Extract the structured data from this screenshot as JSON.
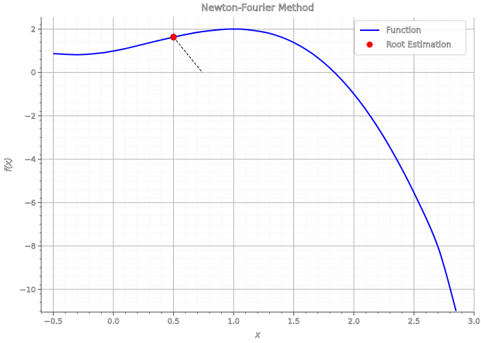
{
  "chart_data": {
    "type": "line",
    "title": "Newton-Fourier Method",
    "xlabel": "x",
    "ylabel": "f(x)",
    "xlim": [
      -0.6,
      3.0
    ],
    "ylim": [
      -11.05,
      2.55
    ],
    "xticks": [
      -0.5,
      0.0,
      0.5,
      1.0,
      1.5,
      2.0,
      2.5,
      3.0
    ],
    "xtick_labels": [
      "−0.5",
      "0.0",
      "0.5",
      "1.0",
      "1.5",
      "2.0",
      "2.5",
      "3.0"
    ],
    "yticks": [
      2,
      0,
      -2,
      -4,
      -6,
      -8,
      -10
    ],
    "ytick_labels": [
      "2",
      "0",
      "−2",
      "−4",
      "−6",
      "−8",
      "−10"
    ],
    "grid": true,
    "minor_grid": true,
    "legend_position": "top-right",
    "series": [
      {
        "name": "Function",
        "kind": "line",
        "color": "#0000ff",
        "x": [
          -0.5,
          -0.3,
          -0.1,
          0.1,
          0.3,
          0.5,
          0.7,
          0.9,
          1.0,
          1.1,
          1.3,
          1.5,
          1.7,
          1.9,
          2.1,
          2.3,
          2.5,
          2.7,
          2.85
        ],
        "y": [
          0.87,
          0.82,
          0.9,
          1.1,
          1.37,
          1.63,
          1.85,
          1.98,
          2.0,
          1.98,
          1.8,
          1.38,
          0.68,
          -0.35,
          -1.72,
          -3.45,
          -5.55,
          -8.05,
          -11.0
        ]
      },
      {
        "name": "Root Estimation",
        "kind": "scatter",
        "color": "#ff0000",
        "x": [
          0.5
        ],
        "y": [
          1.63
        ]
      }
    ],
    "annotations": [
      {
        "kind": "tangent-line",
        "style": "dashed",
        "color": "#000000",
        "x": [
          0.5,
          0.74
        ],
        "y": [
          1.63,
          0.0
        ]
      }
    ]
  }
}
